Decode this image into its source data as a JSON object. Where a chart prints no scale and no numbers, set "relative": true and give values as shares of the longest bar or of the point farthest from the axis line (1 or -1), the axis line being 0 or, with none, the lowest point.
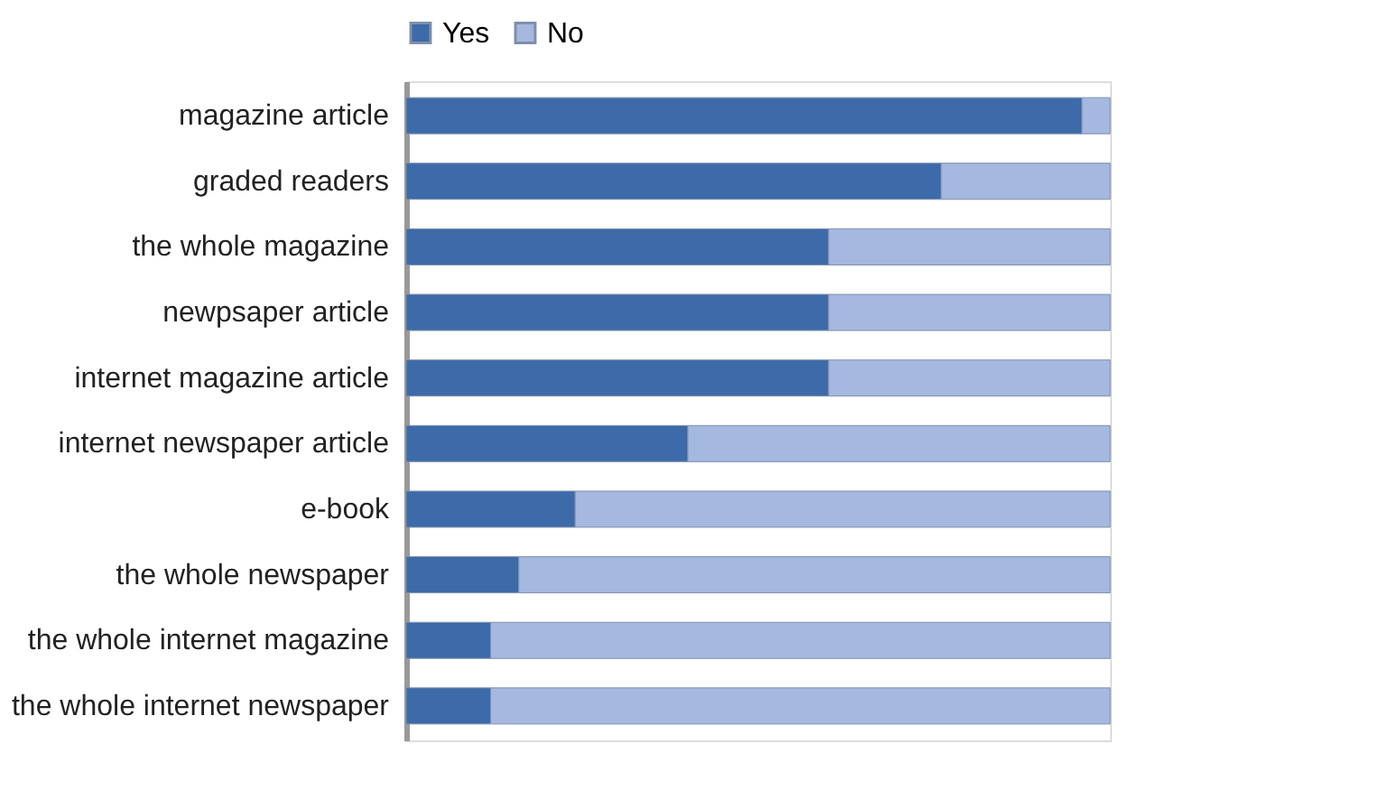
{
  "chart_data": {
    "type": "bar",
    "orientation": "horizontal",
    "stacked": true,
    "relative": true,
    "legend": "top",
    "categories": [
      "magazine article",
      "graded readers",
      "the whole magazine",
      "newpsaper article",
      "internet magazine article",
      "internet newspaper article",
      "e-book",
      "the whole newspaper",
      "the whole internet magazine",
      "the whole internet newspaper"
    ],
    "series": [
      {
        "name": "Yes",
        "color": "#3d6aa8",
        "values": [
          0.96,
          0.76,
          0.6,
          0.6,
          0.6,
          0.4,
          0.24,
          0.16,
          0.12,
          0.12
        ]
      },
      {
        "name": "No",
        "color": "#a4b8e0",
        "values": [
          0.04,
          0.24,
          0.4,
          0.4,
          0.4,
          0.6,
          0.76,
          0.84,
          0.88,
          0.88
        ]
      }
    ]
  }
}
